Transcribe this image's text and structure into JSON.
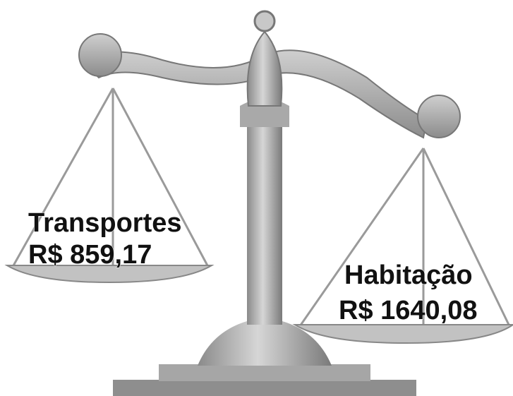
{
  "left": {
    "title": "Transportes",
    "value": "R$ 859,17"
  },
  "right": {
    "title": "Habitação",
    "value": "R$ 1640,08"
  }
}
